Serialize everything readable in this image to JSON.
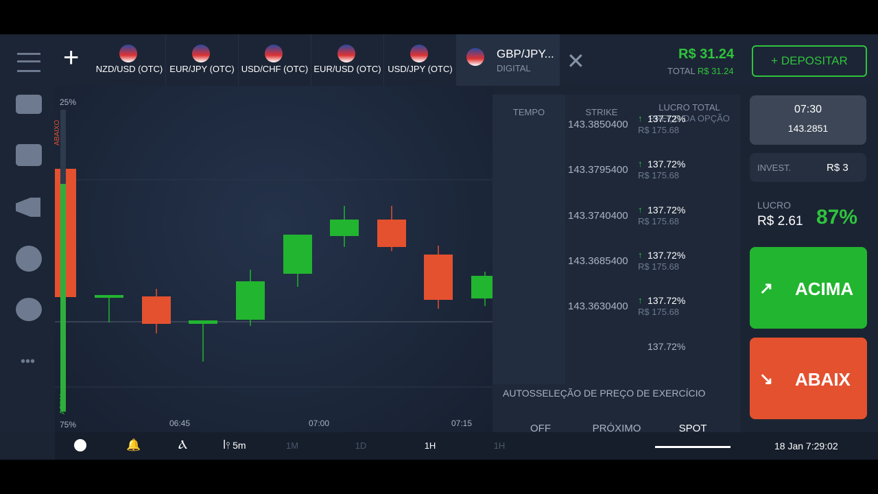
{
  "tabs": [
    "NZD/USD (OTC)",
    "EUR/JPY (OTC)",
    "USD/CHF (OTC)",
    "EUR/USD (OTC)",
    "USD/JPY (OTC)"
  ],
  "active_tab": {
    "name": "GBP/JPY...",
    "type": "DIGITAL"
  },
  "balance": {
    "amount": "R$ 31.24",
    "total_label": "TOTAL",
    "total": "R$ 31.24"
  },
  "deposit_button": "+ DEPOSITAR",
  "chart": {
    "top_label": "25%",
    "bottom_label": "75%",
    "down_label": "ABAIXO",
    "up_label": "ACIMA",
    "time_labels": [
      "06:45",
      "07:00",
      "07:15"
    ]
  },
  "strike_table": {
    "headers": [
      "TEMPO",
      "STRIKE",
      "LUCRO TOTAL",
      "PREÇO DA OPÇÃO"
    ],
    "rows": [
      {
        "strike": "143.3850400",
        "profit": "137.72%",
        "price": "R$ 175.68"
      },
      {
        "strike": "143.3795400",
        "profit": "137.72%",
        "price": "R$ 175.68"
      },
      {
        "strike": "143.3740400",
        "profit": "137.72%",
        "price": "R$ 175.68"
      },
      {
        "strike": "143.3685400",
        "profit": "137.72%",
        "price": "R$ 175.68"
      },
      {
        "strike": "143.3630400",
        "profit": "137.72%",
        "price": "R$ 175.68"
      }
    ],
    "partial_profit": "137.72%",
    "auto_select_label": "AUTOSSELEÇÃO DE PREÇO DE EXERCÍCIO",
    "options": [
      "OFF",
      "PRÓXIMO",
      "SPOT"
    ]
  },
  "expiry": {
    "time": "07:30",
    "price": "143.2851"
  },
  "invest": {
    "label": "INVEST.",
    "amount": "R$ 3"
  },
  "profit": {
    "label": "LUCRO",
    "amount": "R$ 2.61",
    "percent": "87%"
  },
  "buttons": {
    "up": "ACIMA",
    "down": "ABAIX"
  },
  "toolbar": {
    "interval": "5m",
    "periods": [
      "1M",
      "1D",
      "1H",
      "1H"
    ],
    "datetime": "18 Jan 7:29:02"
  }
}
